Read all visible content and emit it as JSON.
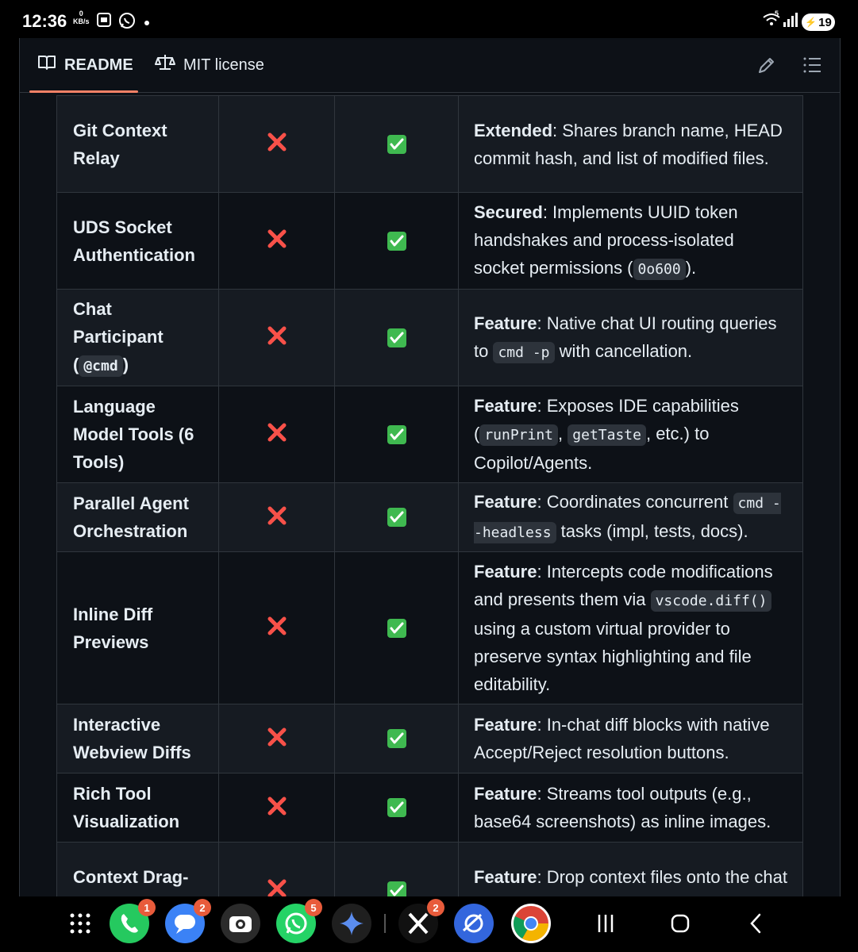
{
  "status_bar": {
    "time": "12:36",
    "data_rate_value": "0",
    "data_rate_unit": "KB/s",
    "network_label": "5",
    "battery": "19"
  },
  "tabs": {
    "readme": "README",
    "license": "MIT license"
  },
  "table": {
    "rows": [
      {
        "name": "Git Context Relay",
        "lead": "Extended",
        "desc": ": Shares branch name, HEAD commit hash, and list of modified files."
      },
      {
        "name": "UDS Socket Authentication",
        "lead": "Secured",
        "desc_a": ": Implements UUID token handshakes and process-isolated socket permissions (",
        "code": "0o600",
        "desc_b": ")."
      },
      {
        "name_a": "Chat Participant (",
        "name_code": "@cmd",
        "name_b": ")",
        "lead": "Feature",
        "desc_a": ": Native chat UI routing queries to ",
        "code": "cmd -p",
        "desc_b": " with cancellation."
      },
      {
        "name": "Language Model Tools (6 Tools)",
        "lead": "Feature",
        "desc_a": ": Exposes IDE capabilities (",
        "code1": "runPrint",
        "sep": ", ",
        "code2": "getTaste",
        "desc_b": ", etc.) to Copilot/Agents."
      },
      {
        "name": "Parallel Agent Orchestration",
        "lead": "Feature",
        "desc_a": ": Coordinates concurrent ",
        "code": "cmd --headless",
        "desc_b": " tasks (impl, tests, docs)."
      },
      {
        "name": "Inline Diff Previews",
        "lead": "Feature",
        "desc_a": ": Intercepts code modifications and presents them via ",
        "code": "vscode.diff()",
        "desc_b": " using a custom virtual provider to preserve syntax highlighting and file editability."
      },
      {
        "name": "Interactive Webview Diffs",
        "lead": "Feature",
        "desc": ": In-chat diff blocks with native Accept/Reject resolution buttons."
      },
      {
        "name": "Rich Tool Visualization",
        "lead": "Feature",
        "desc": ": Streams tool outputs (e.g., base64 screenshots) as inline images."
      },
      {
        "name": "Context Drag-and-Drop",
        "lead": "Feature",
        "desc": ": Drop context files onto the chat to automatically bridge to the CLI"
      }
    ]
  },
  "nav_apps": [
    {
      "name": "apps-grid",
      "badge": ""
    },
    {
      "name": "phone",
      "badge": "1"
    },
    {
      "name": "messages",
      "badge": "2"
    },
    {
      "name": "camera",
      "badge": ""
    },
    {
      "name": "whatsapp",
      "badge": "5"
    },
    {
      "name": "gemini",
      "badge": ""
    },
    {
      "name": "x",
      "badge": "2"
    },
    {
      "name": "assistant",
      "badge": ""
    },
    {
      "name": "chrome",
      "badge": ""
    }
  ],
  "colors": {
    "bg": "#0d1117",
    "row_alt": "#161b22",
    "border": "#30363d",
    "tab_accent": "#f78166",
    "x_mark": "#f85149",
    "check": "#3fb950"
  }
}
